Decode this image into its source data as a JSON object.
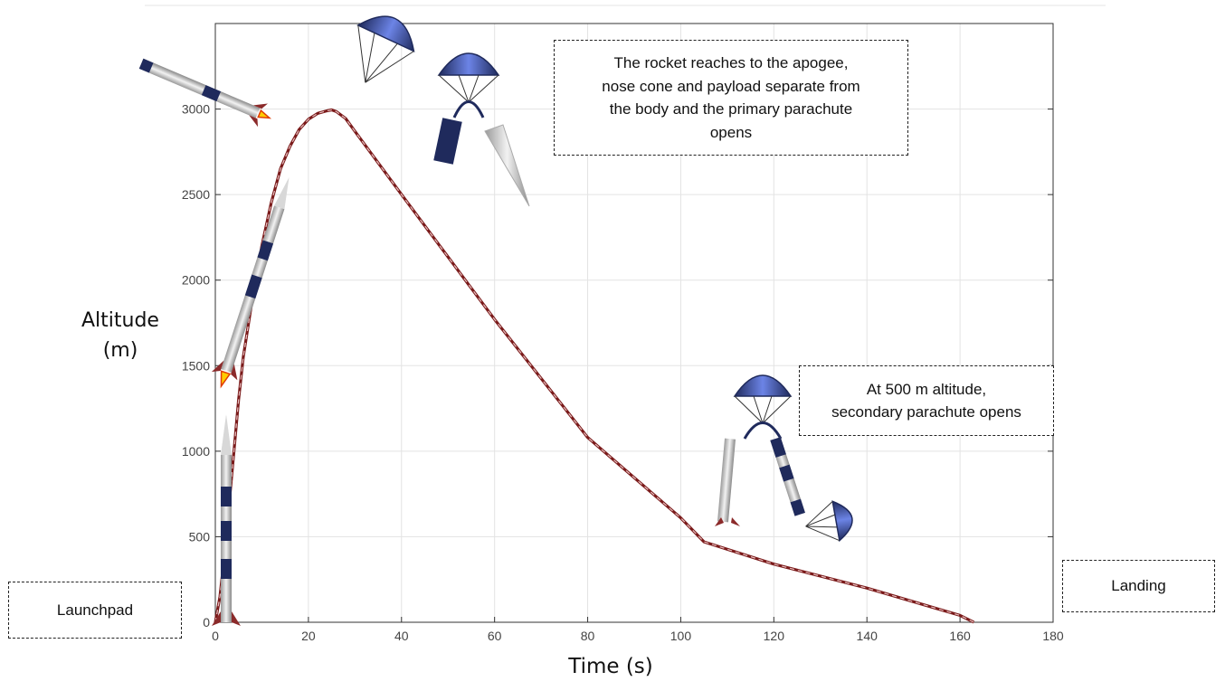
{
  "chart_data": {
    "type": "line",
    "xlabel": "Time (s)",
    "ylabel_line1": "Altitude",
    "ylabel_line2": "(m)",
    "xlim": [
      0,
      180
    ],
    "ylim": [
      0,
      3500
    ],
    "xticks": [
      0,
      20,
      40,
      60,
      80,
      100,
      120,
      140,
      160,
      180
    ],
    "yticks": [
      0,
      500,
      1000,
      1500,
      2000,
      2500,
      3000
    ],
    "grid": true,
    "series": [
      {
        "color": "#7a1a1a",
        "x": [
          0,
          1,
          2,
          3,
          4,
          5,
          6,
          8,
          10,
          12,
          14,
          16,
          18,
          20,
          22,
          24,
          25,
          26,
          28,
          30,
          40,
          60,
          80,
          100,
          105,
          120,
          140,
          160,
          163
        ],
        "y": [
          0,
          150,
          400,
          700,
          1000,
          1300,
          1550,
          1900,
          2200,
          2450,
          2650,
          2780,
          2880,
          2940,
          2975,
          2990,
          2995,
          2985,
          2945,
          2870,
          2500,
          1770,
          1080,
          610,
          470,
          340,
          200,
          40,
          0
        ]
      }
    ],
    "annotations": {
      "apogee": [
        "The rocket reaches to the apogee,",
        "nose cone and payload separate from",
        "the body and the primary parachute",
        "opens"
      ],
      "secondary": [
        "At 500 m altitude,",
        "secondary parachute opens"
      ],
      "launchpad": "Launchpad",
      "landing": "Landing"
    }
  },
  "colors": {
    "rocket_body": "#c8c8c8",
    "rocket_band": "#1f2a5c",
    "fin": "#8b2a2a",
    "parachute_dark": "#1f2a5c",
    "parachute_light": "#5f77d6",
    "flame": "#ffcc00"
  }
}
